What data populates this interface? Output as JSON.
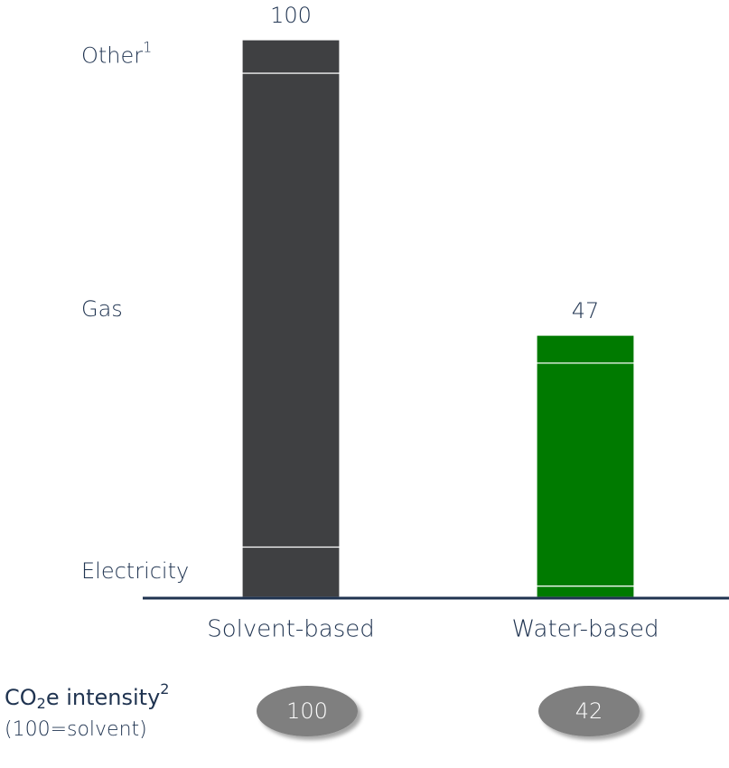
{
  "chart_data": {
    "type": "stacked_bar",
    "categories": [
      "Solvent-based",
      "Water-based"
    ],
    "category_colors": [
      "#3f4042",
      "#007a00"
    ],
    "series": [
      {
        "name": "Electricity",
        "values": [
          9,
          2
        ]
      },
      {
        "name": "Gas",
        "values": [
          85,
          40
        ]
      },
      {
        "name": "Other",
        "footnote": "1",
        "values": [
          6,
          5
        ]
      }
    ],
    "totals": [
      100,
      47
    ],
    "ylim": [
      0,
      100
    ],
    "intensity": {
      "title": [
        "CO",
        "2",
        "e intensity",
        "2"
      ],
      "subtitle": "(100=solvent)",
      "values": [
        100,
        42
      ]
    }
  }
}
